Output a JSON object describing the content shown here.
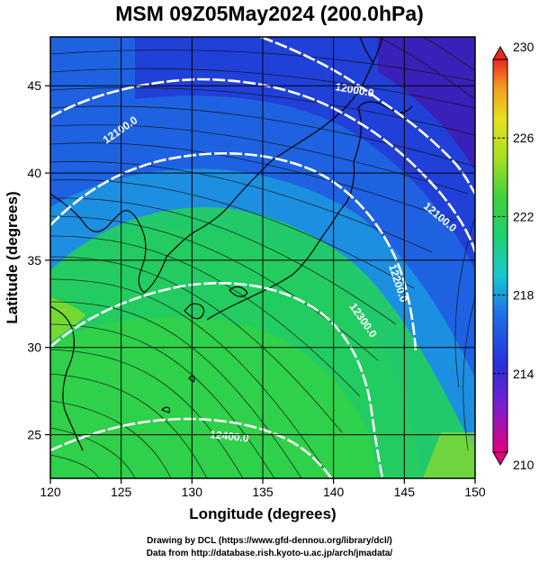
{
  "title": "MSM 09Z05May2024 (200.0hPa)",
  "x_axis": {
    "label": "Longitude (degrees)",
    "ticks": [
      "120",
      "125",
      "130",
      "135",
      "140",
      "145",
      "150"
    ]
  },
  "y_axis": {
    "label": "Latitude  (degrees)",
    "ticks": [
      "25",
      "30",
      "35",
      "40",
      "45"
    ]
  },
  "map": {
    "lon_range": [
      120,
      150
    ],
    "lat_range": [
      22.5,
      47.8
    ],
    "contours": [
      {
        "value": "12000.0",
        "label": "12000.0"
      },
      {
        "value": "12100.0",
        "label": "12100.0"
      },
      {
        "value": "12200.0",
        "label": "12200.0"
      },
      {
        "value": "12300.0",
        "label": "12300.0"
      },
      {
        "value": "12400.0",
        "label": "12400.0"
      }
    ],
    "grid": true
  },
  "colorbar": {
    "min": 210,
    "max": 230,
    "labels": [
      "230",
      "226",
      "222",
      "218",
      "214",
      "210"
    ],
    "colors": [
      "#e6007e",
      "#7a1fd1",
      "#1f3cd6",
      "#1e6fe8",
      "#18c8d0",
      "#1fd070",
      "#3ed23a",
      "#a8e020",
      "#e8e020",
      "#f29a20",
      "#e8281e"
    ]
  },
  "credits": {
    "line1": "Drawing by DCL (https://www.gfd-dennou.org/library/dcl/)",
    "line2": "Data from http://database.rish.kyoto-u.ac.jp/arch/jmadata/"
  }
}
